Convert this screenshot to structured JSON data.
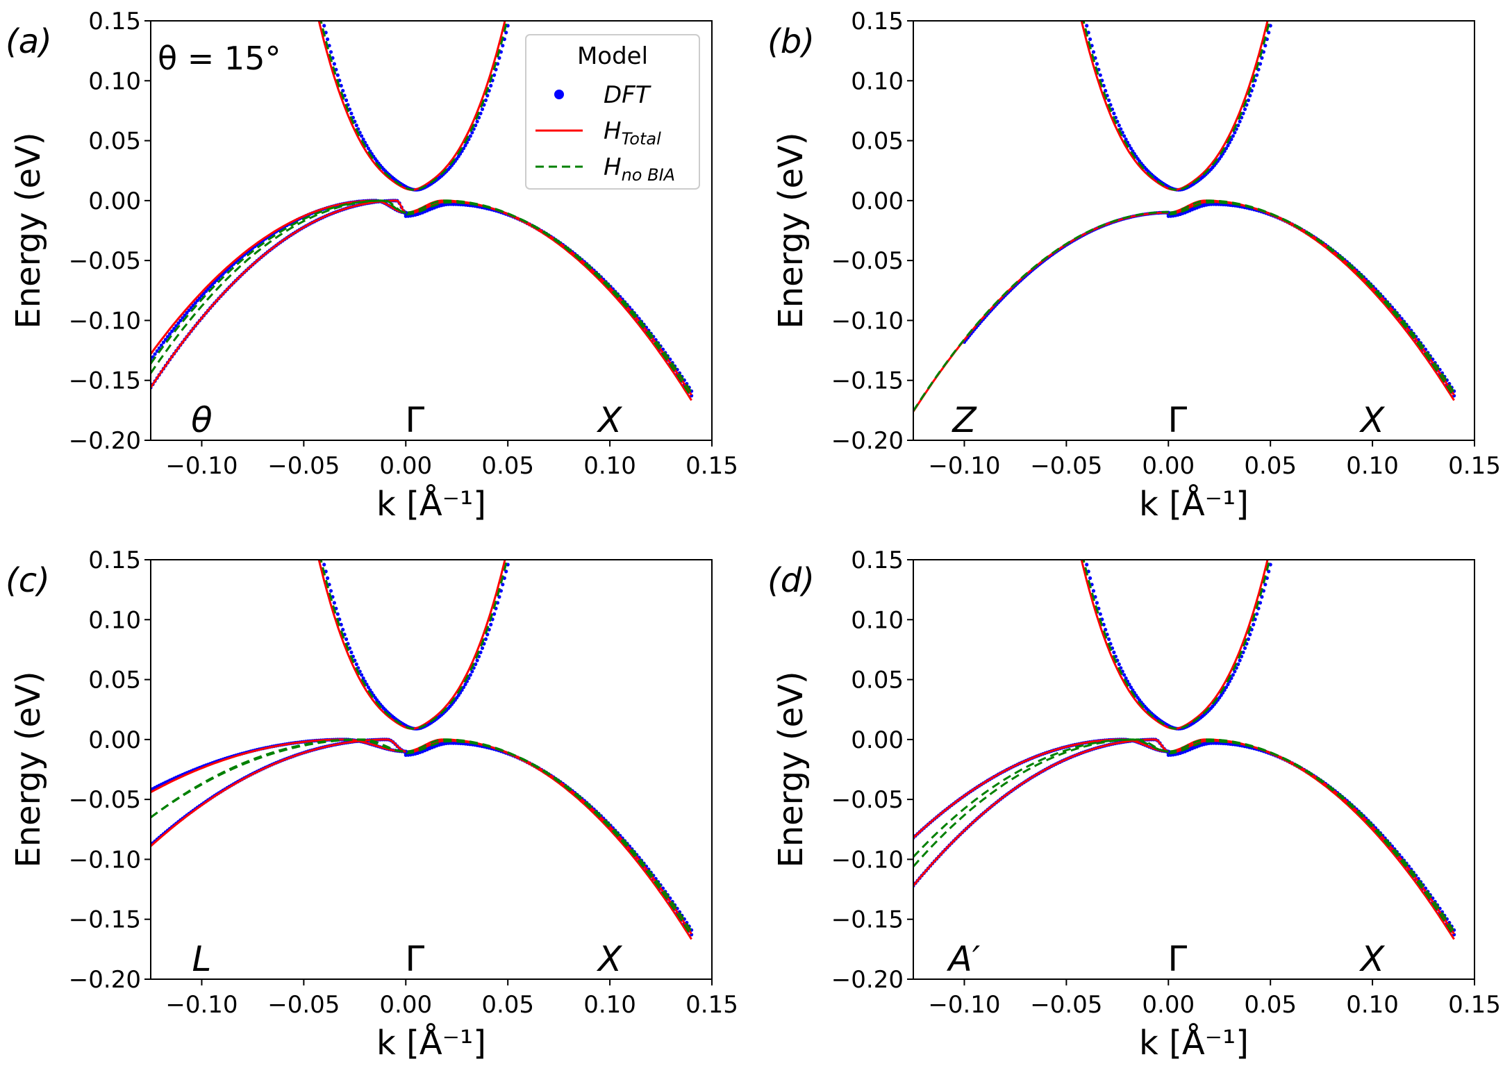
{
  "chart_data": [
    {
      "type": "line",
      "panel_label": "(a)",
      "annotation": "θ = 15°",
      "xlabel": "k [Å⁻¹]",
      "ylabel": "Energy (eV)",
      "xlim": [
        -0.125,
        0.15
      ],
      "ylim": [
        -0.2,
        0.15
      ],
      "xticks": [
        "−0.10",
        "−0.05",
        "0.00",
        "0.05",
        "0.10",
        "0.15"
      ],
      "yticks": [
        "−0.20",
        "−0.15",
        "−0.10",
        "−0.05",
        "0.00",
        "0.05",
        "0.10",
        "0.15"
      ],
      "kpoint_labels": [
        {
          "text": "θ",
          "x": -0.1
        },
        {
          "text": "Γ",
          "x": 0.0
        },
        {
          "text": "X",
          "x": 0.1
        }
      ],
      "left_valence_ends": {
        "DFT": [
          -0.133,
          -0.156
        ],
        "H_Total": [
          -0.128,
          -0.156
        ],
        "H_noBIA": [
          -0.136,
          -0.144
        ]
      },
      "left_peak_k": -0.015,
      "series": [
        {
          "name": "DFT",
          "style": "dots",
          "color": "#0000ff"
        },
        {
          "name": "H_Total",
          "style": "solid",
          "color": "#ff0000"
        },
        {
          "name": "H_noBIA",
          "style": "dashed",
          "color": "#008000"
        }
      ]
    },
    {
      "type": "line",
      "panel_label": "(b)",
      "xlabel": "k [Å⁻¹]",
      "ylabel": "Energy (eV)",
      "xlim": [
        -0.125,
        0.15
      ],
      "ylim": [
        -0.2,
        0.15
      ],
      "xticks": [
        "−0.10",
        "−0.05",
        "0.00",
        "0.05",
        "0.10",
        "0.15"
      ],
      "yticks": [
        "−0.20",
        "−0.15",
        "−0.10",
        "−0.05",
        "0.00",
        "0.05",
        "0.10",
        "0.15"
      ],
      "kpoint_labels": [
        {
          "text": "Z",
          "x": -0.1
        },
        {
          "text": "Γ",
          "x": 0.0
        },
        {
          "text": "X",
          "x": 0.1
        }
      ],
      "left_valence_ends": {
        "DFT": [
          -0.118,
          -0.118
        ],
        "H_Total": [
          -0.176,
          -0.176
        ],
        "H_noBIA": [
          -0.176,
          -0.176
        ]
      },
      "left_dft_stop_k": -0.1,
      "left_peak_k": 0.0,
      "series": [
        {
          "name": "DFT",
          "style": "dots",
          "color": "#0000ff"
        },
        {
          "name": "H_Total",
          "style": "solid",
          "color": "#ff0000"
        },
        {
          "name": "H_noBIA",
          "style": "dashed",
          "color": "#008000"
        }
      ]
    },
    {
      "type": "line",
      "panel_label": "(c)",
      "xlabel": "k [Å⁻¹]",
      "ylabel": "Energy (eV)",
      "xlim": [
        -0.125,
        0.15
      ],
      "ylim": [
        -0.2,
        0.15
      ],
      "xticks": [
        "−0.10",
        "−0.05",
        "0.00",
        "0.05",
        "0.10",
        "0.15"
      ],
      "yticks": [
        "−0.20",
        "−0.15",
        "−0.10",
        "−0.05",
        "0.00",
        "0.05",
        "0.10",
        "0.15"
      ],
      "kpoint_labels": [
        {
          "text": "L",
          "x": -0.1
        },
        {
          "text": "Γ",
          "x": 0.0
        },
        {
          "text": "X",
          "x": 0.1
        }
      ],
      "left_valence_ends": {
        "DFT": [
          -0.042,
          -0.088
        ],
        "H_Total": [
          -0.044,
          -0.089
        ],
        "H_noBIA": [
          -0.065,
          -0.065
        ]
      },
      "left_peak_k": -0.03,
      "series": [
        {
          "name": "DFT",
          "style": "dots",
          "color": "#0000ff"
        },
        {
          "name": "H_Total",
          "style": "solid",
          "color": "#ff0000"
        },
        {
          "name": "H_noBIA",
          "style": "dashed",
          "color": "#008000"
        }
      ]
    },
    {
      "type": "line",
      "panel_label": "(d)",
      "xlabel": "k [Å⁻¹]",
      "ylabel": "Energy (eV)",
      "xlim": [
        -0.125,
        0.15
      ],
      "ylim": [
        -0.2,
        0.15
      ],
      "xticks": [
        "−0.10",
        "−0.05",
        "0.00",
        "0.05",
        "0.10",
        "0.15"
      ],
      "yticks": [
        "−0.20",
        "−0.15",
        "−0.10",
        "−0.05",
        "0.00",
        "0.05",
        "0.10",
        "0.15"
      ],
      "kpoint_labels": [
        {
          "text": "A′",
          "x": -0.1
        },
        {
          "text": "Γ",
          "x": 0.0
        },
        {
          "text": "X",
          "x": 0.1
        }
      ],
      "left_valence_ends": {
        "DFT": [
          -0.082,
          -0.122
        ],
        "H_Total": [
          -0.082,
          -0.122
        ],
        "H_noBIA": [
          -0.098,
          -0.106
        ]
      },
      "left_peak_k": -0.022,
      "series": [
        {
          "name": "DFT",
          "style": "dots",
          "color": "#0000ff"
        },
        {
          "name": "H_Total",
          "style": "solid",
          "color": "#ff0000"
        },
        {
          "name": "H_noBIA",
          "style": "dashed",
          "color": "#008000"
        }
      ]
    }
  ],
  "legend": {
    "title": "Model",
    "entries": [
      {
        "label": "DFT",
        "style": "dots",
        "color": "#0000ff"
      },
      {
        "label": "H",
        "sub": "Total",
        "style": "solid",
        "color": "#ff0000"
      },
      {
        "label": "H",
        "sub": "no BIA",
        "style": "dashed",
        "color": "#008000"
      }
    ]
  }
}
